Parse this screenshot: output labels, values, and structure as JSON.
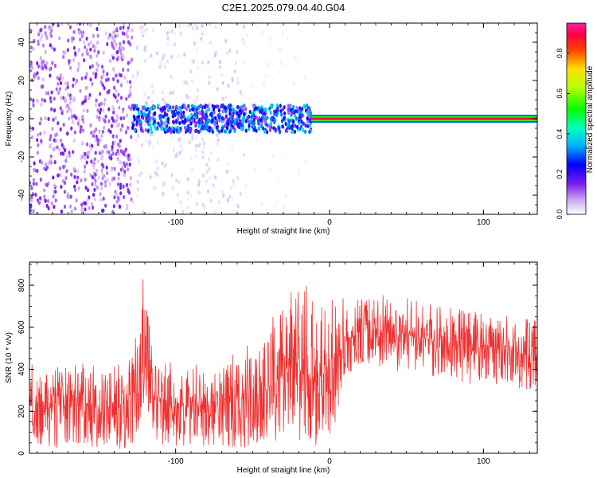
{
  "title": "C2E1.2025.079.04.40.G04",
  "colors": {
    "signal_red": "#f03030",
    "axis": "#000000",
    "background": "#ffffff"
  },
  "chart_data": [
    {
      "type": "heatmap",
      "name": "spectrogram",
      "xlabel": "Height of straight line (km)",
      "ylabel": "Frequency (Hz)",
      "xlim": [
        -195,
        135
      ],
      "ylim": [
        -50,
        50
      ],
      "x_ticks": [
        -100,
        0,
        100
      ],
      "y_ticks": [
        -40,
        -20,
        0,
        20,
        40
      ],
      "grid": false,
      "colorscale": "rainbow (white to violet to blue to cyan to green to yellow to red to magenta)",
      "regions": [
        {
          "x": [
            -195,
            -128
          ],
          "freq_band": [
            -50,
            50
          ],
          "amplitude": 0.1,
          "description": "dense violet noise"
        },
        {
          "x": [
            -128,
            -55
          ],
          "freq_band": [
            -50,
            50
          ],
          "amplitude": 0.03,
          "description": "sparse light violet noise"
        },
        {
          "x": [
            -55,
            -15
          ],
          "freq_band": [
            -50,
            50
          ],
          "amplitude": 0.01,
          "description": "very sparse noise"
        },
        {
          "x": [
            -128,
            -12
          ],
          "freq_band": [
            -7,
            7
          ],
          "amplitude": 0.25,
          "description": "noisy signal band"
        },
        {
          "x": [
            -12,
            135
          ],
          "freq_band": [
            -2,
            2
          ],
          "amplitude": 0.9,
          "description": "strong signal line near 0 Hz"
        }
      ],
      "colorbar": {
        "label": "Normalized spectral amplitude",
        "range": [
          0,
          0.95
        ],
        "ticks": [
          0.0,
          0.2,
          0.4,
          0.6,
          0.8
        ]
      }
    },
    {
      "type": "line",
      "name": "snr",
      "xlabel": "Height of straight line (km)",
      "ylabel": "SNR (10 * v/v)",
      "xlim": [
        -195,
        135
      ],
      "ylim": [
        0,
        910
      ],
      "x_ticks": [
        -100,
        0,
        100
      ],
      "y_ticks": [
        0,
        200,
        400,
        600,
        800
      ],
      "grid": false,
      "series": [
        {
          "color": "#f03030",
          "envelope": {
            "x": [
              -195,
              -185,
              -170,
              -160,
              -150,
              -140,
              -130,
              -125,
              -122,
              -120,
              -118,
              -115,
              -110,
              -100,
              -90,
              -80,
              -70,
              -60,
              -50,
              -40,
              -35,
              -30,
              -25,
              -20,
              -15,
              -10,
              -5,
              0,
              5,
              10,
              20,
              30,
              40,
              50,
              60,
              70,
              80,
              90,
              100,
              110,
              120,
              130,
              135
            ],
            "low": [
              20,
              15,
              20,
              20,
              20,
              20,
              25,
              50,
              200,
              250,
              200,
              50,
              40,
              20,
              20,
              25,
              20,
              25,
              30,
              50,
              60,
              60,
              70,
              60,
              40,
              20,
              80,
              60,
              150,
              350,
              430,
              420,
              400,
              380,
              380,
              360,
              350,
              330,
              330,
              330,
              310,
              290,
              300
            ],
            "high": [
              430,
              400,
              420,
              440,
              420,
              440,
              460,
              620,
              850,
              900,
              700,
              500,
              460,
              420,
              420,
              440,
              460,
              480,
              560,
              620,
              700,
              720,
              800,
              820,
              800,
              780,
              760,
              800,
              760,
              730,
              740,
              760,
              760,
              740,
              720,
              700,
              690,
              680,
              670,
              660,
              650,
              660,
              660
            ],
            "typical": [
              230,
              210,
              220,
              225,
              215,
              230,
              250,
              330,
              430,
              400,
              330,
              260,
              240,
              220,
              215,
              225,
              235,
              240,
              265,
              300,
              330,
              350,
              390,
              400,
              360,
              340,
              370,
              370,
              440,
              520,
              580,
              590,
              580,
              560,
              545,
              530,
              515,
              505,
              500,
              495,
              480,
              465,
              465
            ]
          }
        }
      ]
    }
  ]
}
